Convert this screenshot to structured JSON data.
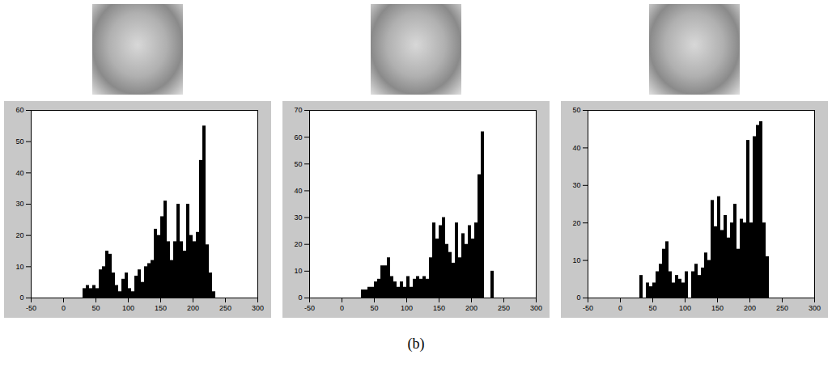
{
  "chart_data": [
    {
      "type": "histogram",
      "bins": [
        30,
        35,
        40,
        45,
        50,
        55,
        60,
        65,
        70,
        75,
        80,
        85,
        90,
        95,
        100,
        105,
        110,
        115,
        120,
        125,
        130,
        135,
        140,
        145,
        150,
        155,
        160,
        165,
        170,
        175,
        180,
        185,
        190,
        195,
        200,
        205,
        210,
        215,
        220,
        225,
        230,
        235,
        240
      ],
      "counts": [
        3,
        4,
        3,
        4,
        3,
        9,
        10,
        15,
        14,
        8,
        4,
        2,
        6,
        8,
        3,
        2,
        7,
        9,
        5,
        10,
        11,
        12,
        22,
        20,
        26,
        31,
        18,
        12,
        18,
        30,
        18,
        15,
        30,
        20,
        18,
        21,
        44,
        55,
        17,
        8,
        2,
        0
      ],
      "color": "#000000",
      "xlim": [
        -50,
        300
      ],
      "xticks": [
        -50,
        0,
        50,
        100,
        150,
        200,
        250,
        300
      ],
      "ylim": [
        0,
        60
      ],
      "yticks": [
        0,
        10,
        20,
        30,
        40,
        50,
        60
      ]
    },
    {
      "type": "histogram",
      "bins": [
        30,
        35,
        40,
        45,
        50,
        55,
        60,
        65,
        70,
        75,
        80,
        85,
        90,
        95,
        100,
        105,
        110,
        115,
        120,
        125,
        130,
        135,
        140,
        145,
        150,
        155,
        160,
        165,
        170,
        175,
        180,
        185,
        190,
        195,
        200,
        205,
        210,
        215,
        220,
        225,
        230,
        235,
        240
      ],
      "counts": [
        3,
        3,
        4,
        4,
        6,
        7,
        12,
        12,
        15,
        8,
        6,
        4,
        6,
        4,
        8,
        4,
        7,
        8,
        7,
        8,
        7,
        15,
        28,
        22,
        27,
        30,
        20,
        17,
        13,
        28,
        15,
        24,
        20,
        27,
        22,
        28,
        46,
        62,
        0,
        0,
        10,
        0
      ],
      "color": "#000000",
      "xlim": [
        -50,
        300
      ],
      "xticks": [
        -50,
        0,
        50,
        100,
        150,
        200,
        250,
        300
      ],
      "ylim": [
        0,
        70
      ],
      "yticks": [
        0,
        10,
        20,
        30,
        40,
        50,
        60,
        70
      ]
    },
    {
      "type": "histogram",
      "bins": [
        30,
        35,
        40,
        45,
        50,
        55,
        60,
        65,
        70,
        75,
        80,
        85,
        90,
        95,
        100,
        105,
        110,
        115,
        120,
        125,
        130,
        135,
        140,
        145,
        150,
        155,
        160,
        165,
        170,
        175,
        180,
        185,
        190,
        195,
        200,
        205,
        210,
        215,
        220,
        225,
        230,
        235,
        240
      ],
      "counts": [
        6,
        0,
        4,
        3,
        4,
        7,
        9,
        13,
        15,
        7,
        4,
        6,
        5,
        4,
        7,
        0,
        7,
        9,
        6,
        8,
        12,
        10,
        26,
        19,
        27,
        18,
        22,
        16,
        20,
        25,
        13,
        21,
        20,
        42,
        20,
        43,
        46,
        47,
        20,
        11,
        0,
        0
      ],
      "color": "#000000",
      "xlim": [
        -50,
        300
      ],
      "xticks": [
        -50,
        0,
        50,
        100,
        150,
        200,
        250,
        300
      ],
      "ylim": [
        0,
        50
      ],
      "yticks": [
        0,
        10,
        20,
        30,
        40,
        50
      ]
    }
  ],
  "caption": "(b)"
}
